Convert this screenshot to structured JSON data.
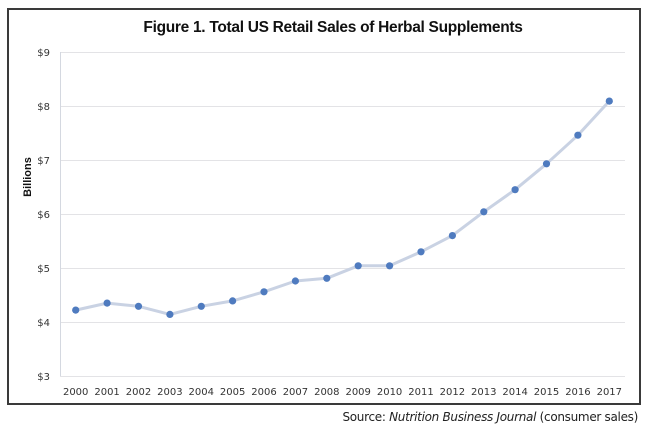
{
  "chart_data": {
    "type": "line",
    "title": "Figure 1. Total US Retail Sales of Herbal Supplements",
    "xlabel": "",
    "ylabel": "Billions",
    "categories": [
      "2000",
      "2001",
      "2002",
      "2003",
      "2004",
      "2005",
      "2006",
      "2007",
      "2008",
      "2009",
      "2010",
      "2011",
      "2012",
      "2013",
      "2014",
      "2015",
      "2016",
      "2017"
    ],
    "series": [
      {
        "name": "Total US Retail Sales of Herbal Supplements",
        "values": [
          4.22,
          4.35,
          4.29,
          4.14,
          4.29,
          4.39,
          4.56,
          4.76,
          4.81,
          5.04,
          5.04,
          5.3,
          5.6,
          6.04,
          6.45,
          6.93,
          7.46,
          8.09
        ],
        "line_color": "#c9d2e3",
        "marker_color": "#4f7bbf"
      }
    ],
    "ylim": [
      3,
      9
    ],
    "yticks": [
      3,
      4,
      5,
      6,
      7,
      8,
      9
    ],
    "ytick_labels": [
      "$3",
      "$4",
      "$5",
      "$6",
      "$7",
      "$8",
      "$9"
    ],
    "grid": true,
    "legend": "none"
  },
  "source": {
    "prefix": "Source: ",
    "publication": "Nutrition Business Journal",
    "suffix": " (consumer sales)"
  }
}
